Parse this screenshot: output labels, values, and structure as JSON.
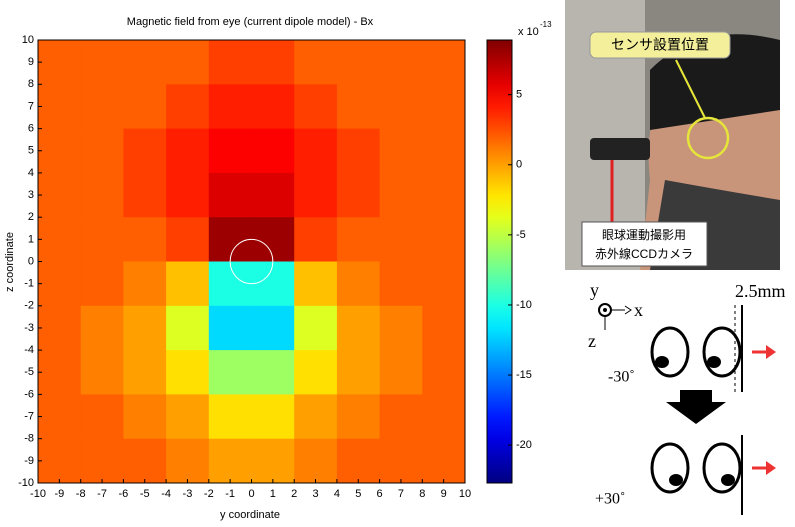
{
  "chart_data": {
    "type": "heatmap",
    "title": "Magnetic field from eye (current dipole model) - Bx",
    "xlabel": "y coordinate",
    "ylabel": "z coordinate",
    "x": [
      -9,
      -7,
      -5,
      -3,
      -1,
      1,
      3,
      5,
      7,
      9
    ],
    "y": [
      9,
      7,
      5,
      3,
      1,
      -1,
      -3,
      -5,
      -7,
      -9
    ],
    "z": [
      [
        2,
        2,
        2,
        2,
        3,
        3,
        2,
        2,
        2,
        2
      ],
      [
        2,
        2,
        2,
        3,
        4,
        4,
        3,
        2,
        2,
        2
      ],
      [
        2,
        2,
        3,
        4,
        5,
        5,
        4,
        3,
        2,
        2
      ],
      [
        2,
        2,
        3,
        4,
        6,
        6,
        4,
        3,
        2,
        2
      ],
      [
        2,
        2,
        2,
        3,
        8,
        8,
        3,
        2,
        2,
        2
      ],
      [
        2,
        2,
        1,
        -1,
        -10,
        -10,
        -1,
        1,
        2,
        2
      ],
      [
        2,
        1,
        0,
        -4,
        -12,
        -12,
        -4,
        0,
        1,
        2
      ],
      [
        2,
        1,
        0,
        -2,
        -6,
        -6,
        -2,
        0,
        1,
        2
      ],
      [
        2,
        2,
        1,
        0,
        -2,
        -2,
        0,
        1,
        2,
        2
      ],
      [
        2,
        2,
        2,
        1,
        0,
        0,
        1,
        2,
        2,
        2
      ]
    ],
    "xlim": [
      -10,
      10
    ],
    "ylim": [
      -10,
      10
    ],
    "xticks": [
      -10,
      -9,
      -8,
      -7,
      -6,
      -5,
      -4,
      -3,
      -2,
      -1,
      0,
      1,
      2,
      3,
      4,
      5,
      6,
      7,
      8,
      9,
      10
    ],
    "yticks": [
      -10,
      -9,
      -8,
      -7,
      -6,
      -5,
      -4,
      -3,
      -2,
      -1,
      0,
      1,
      2,
      3,
      4,
      5,
      6,
      7,
      8,
      9,
      10
    ],
    "colormap": "jet",
    "clim": [
      -22.7,
      8.9
    ],
    "cticks": [
      5,
      0,
      -5,
      -10,
      -15,
      -20
    ],
    "colorbar_label": "x 10",
    "colorbar_exponent": "-13",
    "eye_circle": {
      "cx": 0,
      "cy": 0,
      "r": 1
    }
  },
  "photo": {
    "sensor_label": "センサ設置位置",
    "camera_label_1": "眼球運動撮影用",
    "camera_label_2": "赤外線CCDカメラ"
  },
  "diagram": {
    "axis_y": "y",
    "axis_x": "x",
    "axis_z": "z",
    "gap": "2.5mm",
    "angle_top": "-30˚",
    "angle_bottom": "+30˚"
  }
}
